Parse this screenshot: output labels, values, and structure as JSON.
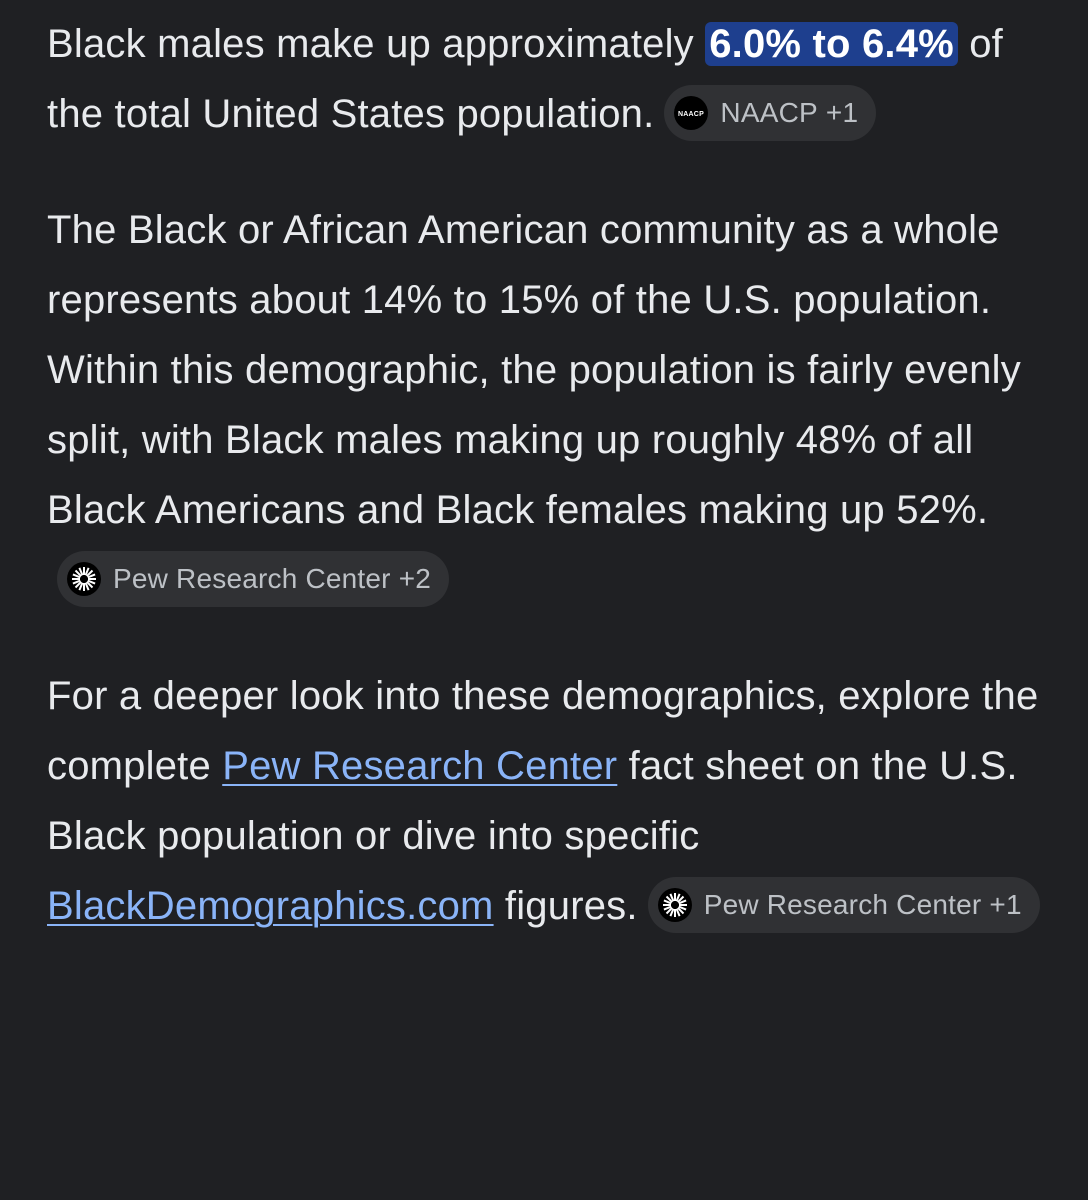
{
  "paragraphs": [
    {
      "before": "Black males make up approximately ",
      "highlight": "6.0% to 6.4%",
      "after": " of the total United States population.",
      "chip": {
        "logo_text": "NAACP",
        "source": "NAACP",
        "more": "+1"
      }
    },
    {
      "text": "The Black or African American community as a whole represents about 14% to 15% of the U.S. population. Within this demographic, the population is fairly evenly split, with Black males making up roughly 48% of all Black Americans and Black females making up 52%.",
      "chip": {
        "source": "Pew Research Center",
        "more": "+2"
      }
    },
    {
      "before": "For a deeper look into these demographics, explore the complete ",
      "link1": "Pew Research Center",
      "middle": " fact sheet on the U.S. Black population or dive into specific ",
      "link2": "BlackDemographics.com",
      "after": " figures.",
      "chip": {
        "source": "Pew Research Center",
        "more": "+1"
      }
    }
  ]
}
